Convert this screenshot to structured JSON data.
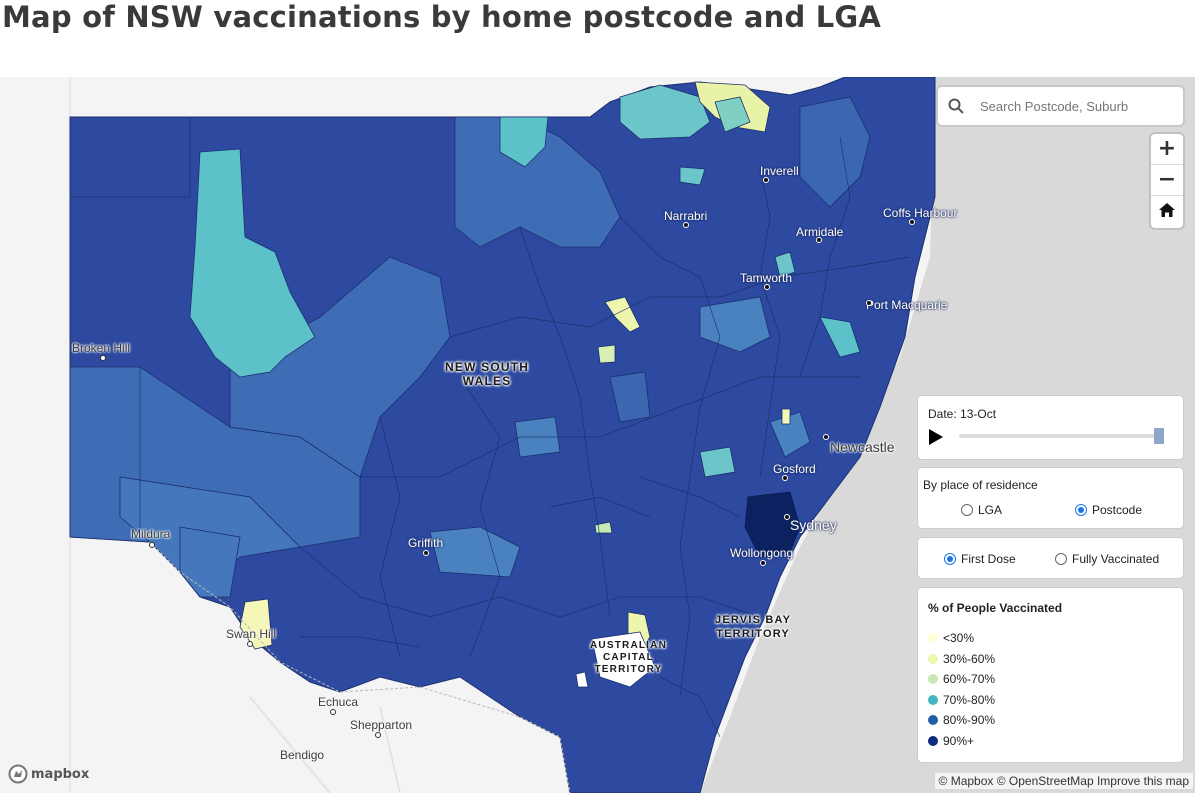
{
  "title": "Map of NSW vaccinations by home postcode and LGA",
  "search": {
    "placeholder": "Search Postcode, Suburb"
  },
  "zoom": {
    "in_label": "+",
    "out_label": "−"
  },
  "icons": [
    "search-icon",
    "zoom-in-icon",
    "zoom-out-icon",
    "home-icon",
    "play-icon",
    "mapbox-logo-icon"
  ],
  "date_control": {
    "label": "Date: 13-Oct",
    "slider_position": 1.0
  },
  "residence": {
    "title": "By place of residence",
    "options": [
      "LGA",
      "Postcode"
    ],
    "selected": "Postcode"
  },
  "dose": {
    "options": [
      "First Dose",
      "Fully Vaccinated"
    ],
    "selected": "First Dose"
  },
  "legend": {
    "title": "% of People Vaccinated",
    "items": [
      {
        "label": "<30%",
        "color": "#ffffd9"
      },
      {
        "label": "30%-60%",
        "color": "#edf8b1"
      },
      {
        "label": "60%-70%",
        "color": "#c7e9b4"
      },
      {
        "label": "70%-80%",
        "color": "#41b6c4"
      },
      {
        "label": "80%-90%",
        "color": "#225ea8"
      },
      {
        "label": "90%+",
        "color": "#0c2c84"
      }
    ]
  },
  "places": {
    "broken_hill": "Broken Hill",
    "mildura": "Mildura",
    "swan_hill": "Swan Hill",
    "echuca": "Echuca",
    "shepparton": "Shepparton",
    "bendigo": "Bendigo",
    "griffith": "Griffith",
    "narrabri": "Narrabri",
    "inverell": "Inverell",
    "armidale": "Armidale",
    "tamworth": "Tamworth",
    "coffs_harbour": "Coffs Harbour",
    "port_macquarie": "Port Macquarie",
    "newcastle": "Newcastle",
    "gosford": "Gosford",
    "sydney": "Sydney",
    "wollongong": "Wollongong"
  },
  "regions": {
    "nsw": "NEW SOUTH\nWALES",
    "jervis_bay": "JERVIS BAY\nTERRITORY",
    "act": "AUSTRALIAN\nCAPITAL\nTERRITORY"
  },
  "attribution": {
    "logo": "mapbox",
    "text": "© Mapbox © OpenStreetMap Improve this map"
  }
}
